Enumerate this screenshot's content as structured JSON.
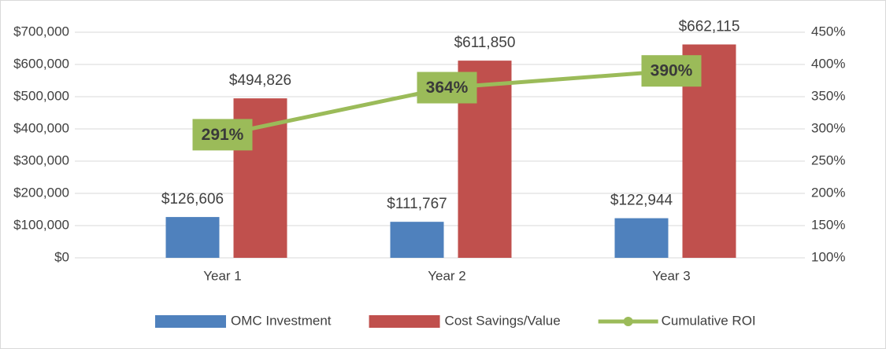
{
  "chart_data": {
    "type": "bar",
    "categories": [
      "Year 1",
      "Year 2",
      "Year 3"
    ],
    "series": [
      {
        "name": "OMC Investment",
        "color": "#4f81bd",
        "values": [
          126606,
          111767,
          122944
        ],
        "value_labels": [
          "$126,606",
          "$111,767",
          "$122,944"
        ]
      },
      {
        "name": "Cost Savings/Value",
        "color": "#c0504d",
        "values": [
          494826,
          611850,
          662115
        ],
        "value_labels": [
          "$494,826",
          "$611,850",
          "$662,115"
        ]
      },
      {
        "name": "Cumulative ROI",
        "color": "#9bbb59",
        "type": "line",
        "axis": "y2",
        "values": [
          291,
          364,
          390
        ],
        "value_labels": [
          "291%",
          "364%",
          "390%"
        ]
      }
    ],
    "ylim": [
      0,
      700000
    ],
    "yticks": [
      {
        "value": 0,
        "label": "$0"
      },
      {
        "value": 100000,
        "label": "$100,000"
      },
      {
        "value": 200000,
        "label": "$200,000"
      },
      {
        "value": 300000,
        "label": "$300,000"
      },
      {
        "value": 400000,
        "label": "$400,000"
      },
      {
        "value": 500000,
        "label": "$500,000"
      },
      {
        "value": 600000,
        "label": "$600,000"
      },
      {
        "value": 700000,
        "label": "$700,000"
      }
    ],
    "y2lim": [
      100,
      450
    ],
    "y2ticks": [
      {
        "value": 100,
        "label": "100%"
      },
      {
        "value": 150,
        "label": "150%"
      },
      {
        "value": 200,
        "label": "200%"
      },
      {
        "value": 250,
        "label": "250%"
      },
      {
        "value": 300,
        "label": "300%"
      },
      {
        "value": 350,
        "label": "350%"
      },
      {
        "value": 400,
        "label": "400%"
      },
      {
        "value": 450,
        "label": "450%"
      }
    ],
    "grid": true,
    "legend": "bottom"
  }
}
